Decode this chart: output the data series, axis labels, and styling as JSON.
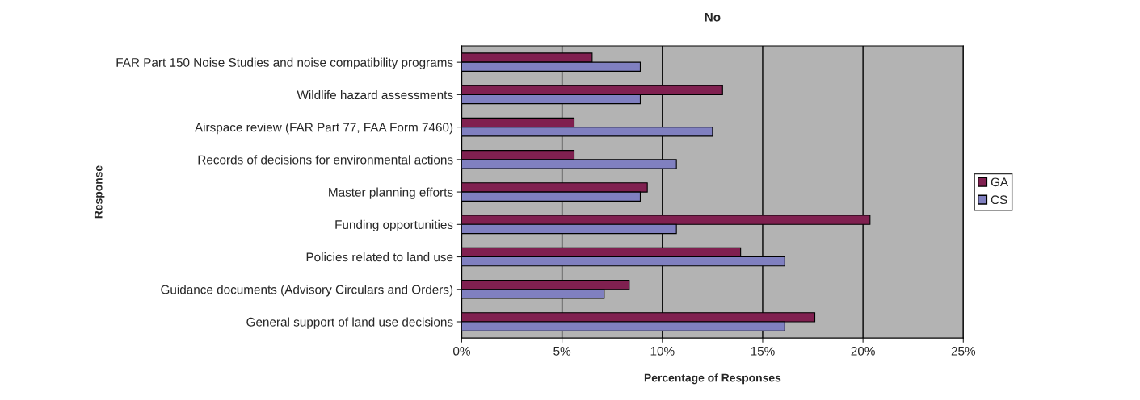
{
  "chart_data": {
    "type": "bar",
    "orientation": "horizontal",
    "title": "No",
    "xlabel": "Percentage of Responses",
    "ylabel": "Response",
    "categories": [
      "FAR Part 150 Noise Studies and noise compatibility programs",
      "Wildlife hazard assessments",
      "Airspace review (FAR Part 77, FAA Form 7460)",
      "Records of decisions for environmental actions",
      "Master planning efforts",
      "Funding opportunities",
      "Policies related to land use",
      "Guidance documents (Advisory Circulars and Orders)",
      "General support of land use decisions"
    ],
    "series": [
      {
        "name": "GA",
        "color": "#802050",
        "values": [
          6.5,
          13.0,
          5.6,
          5.6,
          9.25,
          20.35,
          13.9,
          8.35,
          17.6
        ]
      },
      {
        "name": "CS",
        "color": "#8080c0",
        "values": [
          8.9,
          8.9,
          12.5,
          10.7,
          8.9,
          10.7,
          16.1,
          7.1,
          16.1
        ]
      }
    ],
    "xlim": [
      0,
      25
    ],
    "xticks": [
      {
        "value": 0,
        "label": "0%"
      },
      {
        "value": 5,
        "label": "5%"
      },
      {
        "value": 10,
        "label": "10%"
      },
      {
        "value": 15,
        "label": "15%"
      },
      {
        "value": 20,
        "label": "20%"
      },
      {
        "value": 25,
        "label": "25%"
      }
    ],
    "grid": "x",
    "legend": "right"
  }
}
